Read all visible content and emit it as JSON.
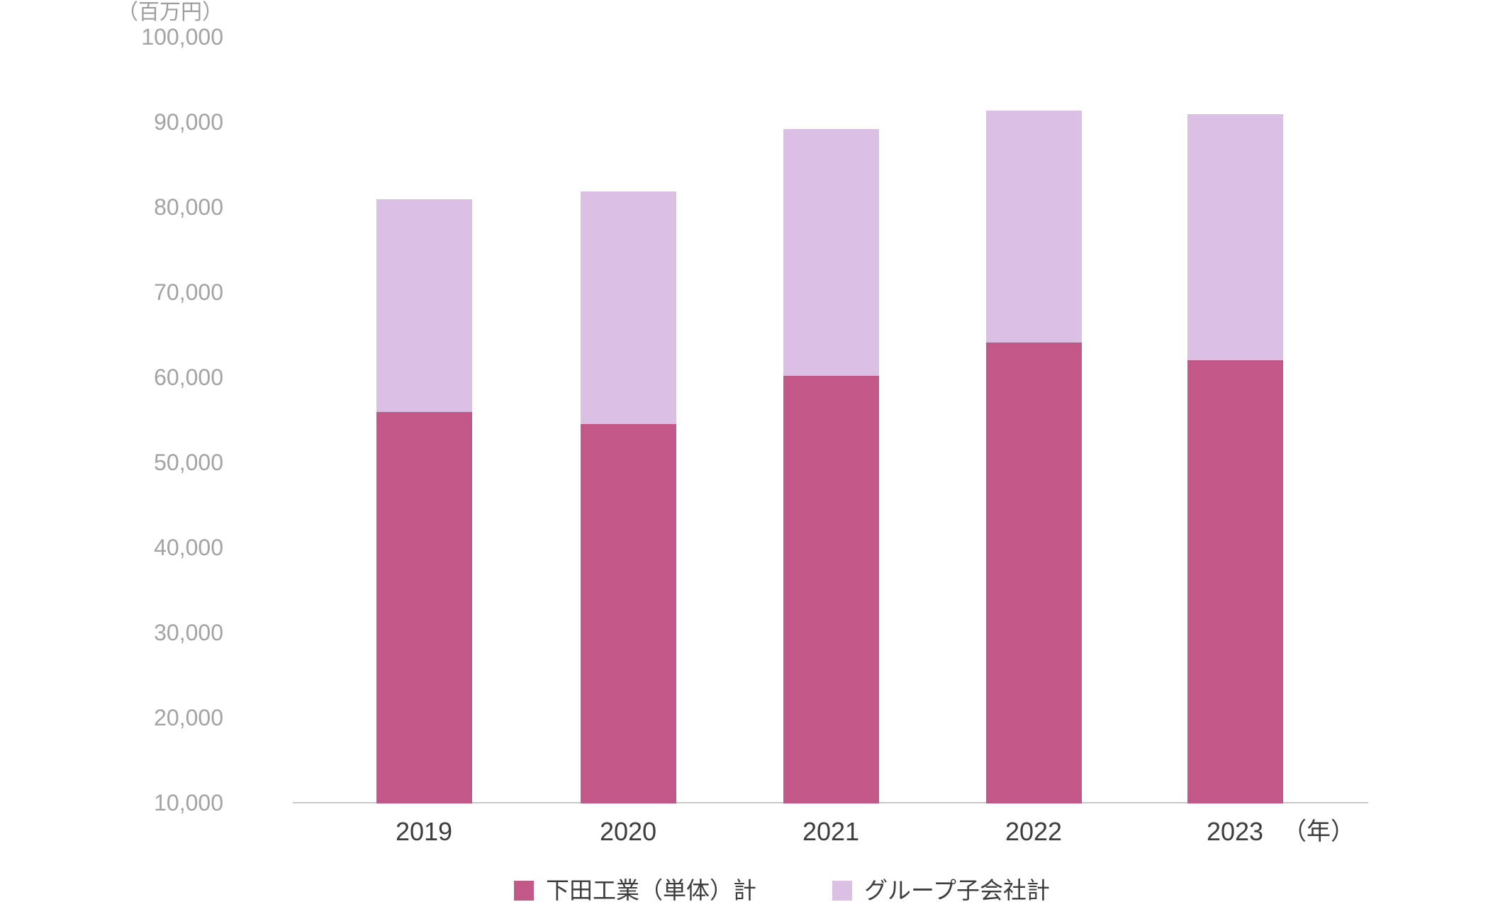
{
  "chart_data": {
    "type": "bar",
    "stacked": true,
    "title": "",
    "y_unit": "（百万円）",
    "x_unit": "（年）",
    "xlabel": "",
    "ylabel": "",
    "categories": [
      "2019",
      "2020",
      "2021",
      "2022",
      "2023"
    ],
    "series": [
      {
        "name": "下田工業（単体）計",
        "color": "#c25887",
        "values": [
          55900,
          54500,
          60200,
          64100,
          62000
        ]
      },
      {
        "name": "グループ子会社計",
        "color": "#dbbfe4",
        "values": [
          25000,
          27300,
          29000,
          27200,
          28900
        ]
      }
    ],
    "totals": [
      80900,
      81800,
      89200,
      91300,
      90900
    ],
    "ylim": [
      10000,
      100000
    ],
    "y_tick_step": 10000,
    "y_tick_labels": [
      "10,000",
      "20,000",
      "30,000",
      "40,000",
      "50,000",
      "60,000",
      "70,000",
      "80,000",
      "90,000",
      "100,000"
    ],
    "grid": false,
    "legend_position": "bottom",
    "colors": {
      "axis_line": "#c9c9c9",
      "y_tick_text": "#a3a3a3",
      "x_tick_text": "#3d3d3d",
      "unit_text": "#9e9e9e",
      "background": "#ffffff"
    }
  }
}
